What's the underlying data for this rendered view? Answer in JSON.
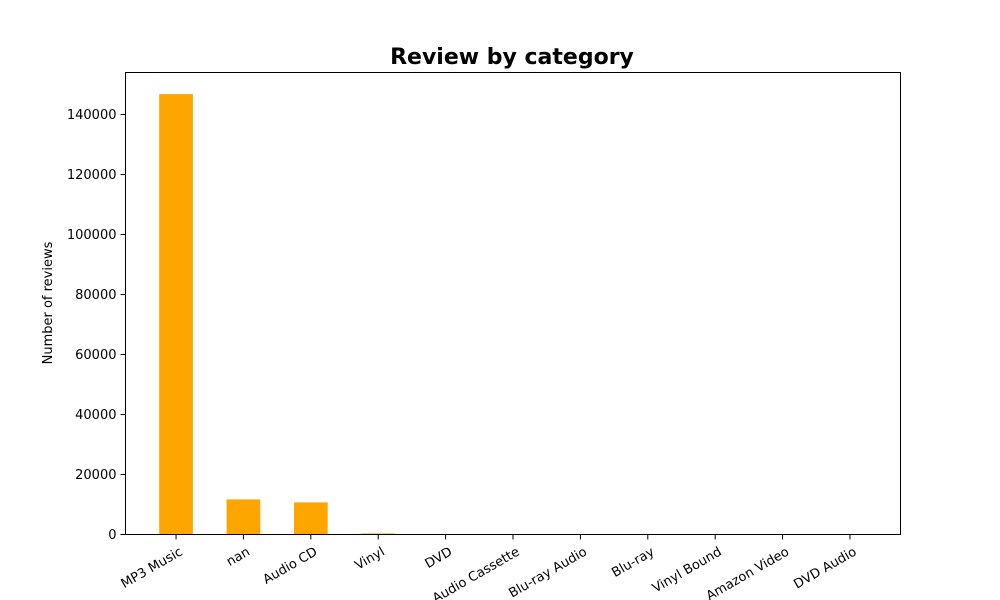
{
  "chart_data": {
    "type": "bar",
    "title": "Review by category",
    "xlabel": "",
    "ylabel": "Number of reviews",
    "categories": [
      "MP3 Music",
      "nan",
      "Audio CD",
      "Vinyl",
      "DVD",
      "Audio Cassette",
      "Blu-ray Audio",
      "Blu-ray",
      "Vinyl Bound",
      "Amazon Video",
      "DVD Audio"
    ],
    "values": [
      146800,
      11700,
      10700,
      350,
      40,
      10,
      5,
      4,
      3,
      2,
      1
    ],
    "ylim": [
      0,
      154000
    ],
    "yticks": [
      0,
      20000,
      40000,
      60000,
      80000,
      100000,
      120000,
      140000
    ],
    "bar_color": "#FFA500",
    "grid": false,
    "legend": "none",
    "xtick_rotation_deg": 30
  }
}
